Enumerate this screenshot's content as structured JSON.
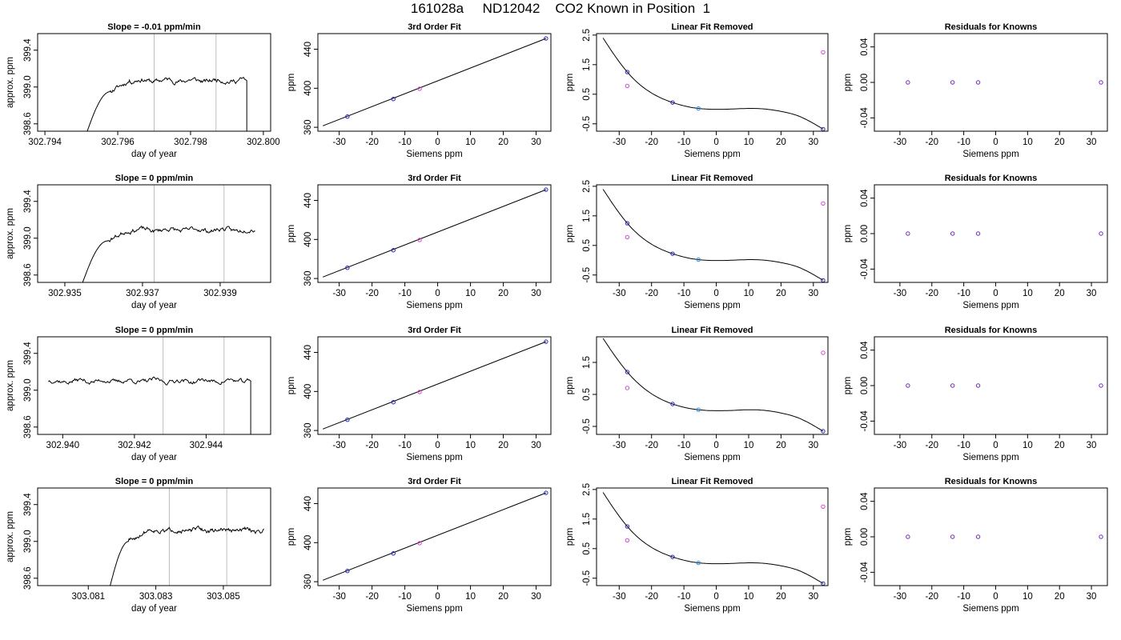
{
  "figure": {
    "title": "161028a     ND12042    CO2 Known in Position  1"
  },
  "colors": {
    "axis": "#000000",
    "trace": "#000000",
    "vertical_marker": "#bdbdbd",
    "point_dark": "#2222cc",
    "point_blue": "#1e90ff",
    "point_magenta": "#dd44dd",
    "point_purple": "#7722cc",
    "trace_red": "#dd2222"
  },
  "chart_data": [
    {
      "type": "line",
      "row": 1,
      "col": 1,
      "title": "Slope =  -0.01  ppm/min",
      "xlabel": "day of year",
      "ylabel": "approx. ppm",
      "xlim": [
        302.7938,
        302.8002
      ],
      "ylim": [
        398.52,
        399.58
      ],
      "xticks": [
        302.794,
        302.796,
        302.798,
        302.8
      ],
      "xticklabels": [
        "302.794",
        "302.796",
        "302.798",
        "302.800"
      ],
      "yticks": [
        398.6,
        399.0,
        399.4
      ],
      "yticklabels": [
        "398.6",
        "399.0",
        "399.4"
      ],
      "vlines": [
        302.797,
        302.7987
      ],
      "trace": {
        "start": 302.7951,
        "rise_end": 302.7958,
        "end": 302.7995,
        "base": 398.45,
        "level": 399.07,
        "drop": true,
        "seed": 11
      }
    },
    {
      "type": "scatter",
      "row": 1,
      "col": 2,
      "title": "3rd Order Fit",
      "xlabel": "Siemens ppm",
      "ylabel": "ppm",
      "xlim": [
        -36.5,
        34.5
      ],
      "ylim": [
        356,
        456
      ],
      "xticks": [
        -30,
        -20,
        -10,
        0,
        10,
        20,
        30
      ],
      "xticklabels": [
        "-30",
        "-20",
        "-10",
        "0",
        "10",
        "20",
        "30"
      ],
      "yticks": [
        360,
        400,
        440
      ],
      "yticklabels": [
        "360",
        "400",
        "440"
      ],
      "line": [
        [
          -35,
          361.5
        ],
        [
          33,
          451
        ]
      ],
      "points": [
        {
          "x": -27.5,
          "y": 371,
          "color": "point_dark"
        },
        {
          "x": -13.5,
          "y": 389,
          "color": "point_dark"
        },
        {
          "x": -5.5,
          "y": 399.5,
          "color": "point_magenta"
        },
        {
          "x": 33,
          "y": 451,
          "color": "point_dark"
        }
      ]
    },
    {
      "type": "scatter",
      "row": 1,
      "col": 3,
      "title": "Linear Fit Removed",
      "xlabel": "Siemens ppm",
      "ylabel": "ppm",
      "xlim": [
        -37,
        34.5
      ],
      "ylim": [
        -0.75,
        2.55
      ],
      "xticks": [
        -30,
        -20,
        -10,
        0,
        10,
        20,
        30
      ],
      "xticklabels": [
        "-30",
        "-20",
        "-10",
        "0",
        "10",
        "20",
        "30"
      ],
      "yticks": [
        -0.5,
        0.5,
        1.5,
        2.5
      ],
      "yticklabels": [
        "-0.5",
        "0.5",
        "1.5",
        "2.5"
      ],
      "curve": {
        "x": [
          -35,
          -27.5,
          -13.5,
          -5.5,
          0,
          5,
          10,
          15,
          20,
          25,
          33
        ],
        "y": [
          2.4,
          1.25,
          0.22,
          0.02,
          -0.01,
          0.0,
          0.02,
          0.0,
          -0.08,
          -0.22,
          -0.68
        ]
      },
      "points": [
        {
          "x": -27.5,
          "y": 1.25,
          "color": "point_dark"
        },
        {
          "x": -27.5,
          "y": 0.78,
          "color": "point_magenta"
        },
        {
          "x": -13.5,
          "y": 0.22,
          "color": "point_dark"
        },
        {
          "x": -5.5,
          "y": 0.02,
          "color": "point_blue"
        },
        {
          "x": 33,
          "y": 1.92,
          "color": "point_magenta"
        },
        {
          "x": 33,
          "y": -0.68,
          "color": "point_dark"
        }
      ]
    },
    {
      "type": "scatter",
      "row": 1,
      "col": 4,
      "title": "Residuals for Knowns",
      "xlabel": "Siemens ppm",
      "ylabel": "ppm",
      "xlim": [
        -38,
        35
      ],
      "ylim": [
        -0.055,
        0.055
      ],
      "xticks": [
        -30,
        -20,
        -10,
        0,
        10,
        20,
        30
      ],
      "xticklabels": [
        "-30",
        "-20",
        "-10",
        "0",
        "10",
        "20",
        "30"
      ],
      "yticks": [
        -0.04,
        0.0,
        0.04
      ],
      "yticklabels": [
        "-0.04",
        "0.00",
        "0.04"
      ],
      "points": [
        {
          "x": -27.5,
          "y": 0,
          "color": "point_purple"
        },
        {
          "x": -13.5,
          "y": 0,
          "color": "point_purple"
        },
        {
          "x": -5.5,
          "y": 0,
          "color": "point_purple"
        },
        {
          "x": 33,
          "y": 0,
          "color": "point_purple"
        }
      ]
    },
    {
      "type": "line",
      "row": 2,
      "col": 1,
      "title": "Slope =  0  ppm/min",
      "xlabel": "day of year",
      "ylabel": "approx. ppm",
      "xlim": [
        302.9343,
        302.9403
      ],
      "ylim": [
        398.52,
        399.58
      ],
      "xticks": [
        302.935,
        302.937,
        302.939
      ],
      "xticklabels": [
        "302.935",
        "302.937",
        "302.939"
      ],
      "yticks": [
        398.6,
        399.0,
        399.4
      ],
      "yticklabels": [
        "398.6",
        "399.0",
        "399.4"
      ],
      "vlines": [
        302.9373,
        302.9391
      ],
      "trace": {
        "start": 302.9354,
        "rise_end": 302.9361,
        "end": 302.9399,
        "base": 398.45,
        "level": 399.09,
        "drop": false,
        "seed": 23
      }
    },
    {
      "type": "scatter",
      "row": 2,
      "col": 2,
      "title": "3rd Order Fit",
      "xlabel": "Siemens ppm",
      "ylabel": "ppm",
      "xlim": [
        -36.5,
        34.5
      ],
      "ylim": [
        356,
        456
      ],
      "xticks": [
        -30,
        -20,
        -10,
        0,
        10,
        20,
        30
      ],
      "xticklabels": [
        "-30",
        "-20",
        "-10",
        "0",
        "10",
        "20",
        "30"
      ],
      "yticks": [
        360,
        400,
        440
      ],
      "yticklabels": [
        "360",
        "400",
        "440"
      ],
      "line": [
        [
          -35,
          361.5
        ],
        [
          33,
          451
        ]
      ],
      "points": [
        {
          "x": -27.5,
          "y": 371,
          "color": "point_dark"
        },
        {
          "x": -13.5,
          "y": 389,
          "color": "point_dark"
        },
        {
          "x": -5.5,
          "y": 399.5,
          "color": "point_magenta"
        },
        {
          "x": 33,
          "y": 451,
          "color": "point_dark"
        }
      ]
    },
    {
      "type": "scatter",
      "row": 2,
      "col": 3,
      "title": "Linear Fit Removed",
      "xlabel": "Siemens ppm",
      "ylabel": "ppm",
      "xlim": [
        -37,
        34.5
      ],
      "ylim": [
        -0.75,
        2.55
      ],
      "xticks": [
        -30,
        -20,
        -10,
        0,
        10,
        20,
        30
      ],
      "xticklabels": [
        "-30",
        "-20",
        "-10",
        "0",
        "10",
        "20",
        "30"
      ],
      "yticks": [
        -0.5,
        0.5,
        1.5,
        2.5
      ],
      "yticklabels": [
        "-0.5",
        "0.5",
        "1.5",
        "2.5"
      ],
      "curve": {
        "x": [
          -35,
          -27.5,
          -13.5,
          -5.5,
          0,
          5,
          10,
          15,
          20,
          25,
          33
        ],
        "y": [
          2.4,
          1.25,
          0.22,
          0.02,
          -0.01,
          0.0,
          0.02,
          0.0,
          -0.08,
          -0.22,
          -0.68
        ]
      },
      "points": [
        {
          "x": -27.5,
          "y": 1.25,
          "color": "point_dark"
        },
        {
          "x": -27.5,
          "y": 0.78,
          "color": "point_magenta"
        },
        {
          "x": -13.5,
          "y": 0.22,
          "color": "point_dark"
        },
        {
          "x": -5.5,
          "y": 0.02,
          "color": "point_blue"
        },
        {
          "x": 33,
          "y": 1.92,
          "color": "point_magenta"
        },
        {
          "x": 33,
          "y": -0.68,
          "color": "point_dark"
        }
      ]
    },
    {
      "type": "scatter",
      "row": 2,
      "col": 4,
      "title": "Residuals for Knowns",
      "xlabel": "Siemens ppm",
      "ylabel": "ppm",
      "xlim": [
        -38,
        35
      ],
      "ylim": [
        -0.055,
        0.055
      ],
      "xticks": [
        -30,
        -20,
        -10,
        0,
        10,
        20,
        30
      ],
      "xticklabels": [
        "-30",
        "-20",
        "-10",
        "0",
        "10",
        "20",
        "30"
      ],
      "yticks": [
        -0.04,
        0.0,
        0.04
      ],
      "yticklabels": [
        "-0.04",
        "0.00",
        "0.04"
      ],
      "points": [
        {
          "x": -27.5,
          "y": 0,
          "color": "point_purple"
        },
        {
          "x": -13.5,
          "y": 0,
          "color": "point_purple"
        },
        {
          "x": -5.5,
          "y": 0,
          "color": "point_purple"
        },
        {
          "x": 33,
          "y": 0,
          "color": "point_purple"
        }
      ]
    },
    {
      "type": "line",
      "row": 3,
      "col": 1,
      "title": "Slope =  0  ppm/min",
      "xlabel": "day of year",
      "ylabel": "approx. ppm",
      "xlim": [
        302.9393,
        302.9458
      ],
      "ylim": [
        398.52,
        399.58
      ],
      "xticks": [
        302.94,
        302.942,
        302.944
      ],
      "xticklabels": [
        "302.940",
        "302.942",
        "302.944"
      ],
      "yticks": [
        398.6,
        399.0,
        399.4
      ],
      "yticklabels": [
        "398.6",
        "399.0",
        "399.4"
      ],
      "vlines": [
        302.9428,
        302.9445
      ],
      "trace": {
        "start": 302.9396,
        "rise_end": 302.9396,
        "end": 302.9452,
        "base": 398.45,
        "level": 399.1,
        "drop": true,
        "seed": 37
      }
    },
    {
      "type": "scatter",
      "row": 3,
      "col": 2,
      "title": "3rd Order Fit",
      "xlabel": "Siemens ppm",
      "ylabel": "ppm",
      "xlim": [
        -36.5,
        34.5
      ],
      "ylim": [
        356,
        456
      ],
      "xticks": [
        -30,
        -20,
        -10,
        0,
        10,
        20,
        30
      ],
      "xticklabels": [
        "-30",
        "-20",
        "-10",
        "0",
        "10",
        "20",
        "30"
      ],
      "yticks": [
        360,
        400,
        440
      ],
      "yticklabels": [
        "360",
        "400",
        "440"
      ],
      "line": [
        [
          -35,
          361.5
        ],
        [
          33,
          451
        ]
      ],
      "points": [
        {
          "x": -27.5,
          "y": 371,
          "color": "point_dark"
        },
        {
          "x": -13.5,
          "y": 389,
          "color": "point_dark"
        },
        {
          "x": -5.5,
          "y": 399.5,
          "color": "point_magenta"
        },
        {
          "x": 33,
          "y": 451,
          "color": "point_dark"
        }
      ]
    },
    {
      "type": "scatter",
      "row": 3,
      "col": 3,
      "title": "Linear Fit Removed",
      "xlabel": "Siemens ppm",
      "ylabel": "ppm",
      "xlim": [
        -37,
        34.5
      ],
      "ylim": [
        -0.75,
        2.3
      ],
      "xticks": [
        -30,
        -20,
        -10,
        0,
        10,
        20,
        30
      ],
      "xticklabels": [
        "-30",
        "-20",
        "-10",
        "0",
        "10",
        "20",
        "30"
      ],
      "yticks": [
        -0.5,
        0.5,
        1.5
      ],
      "yticklabels": [
        "-0.5",
        "0.5",
        "1.5"
      ],
      "curve": {
        "x": [
          -35,
          -27.5,
          -13.5,
          -5.5,
          0,
          5,
          10,
          15,
          20,
          25,
          33
        ],
        "y": [
          2.25,
          1.2,
          0.2,
          0.02,
          -0.01,
          0.0,
          0.02,
          0.0,
          -0.08,
          -0.22,
          -0.65
        ]
      },
      "points": [
        {
          "x": -27.5,
          "y": 1.2,
          "color": "point_dark"
        },
        {
          "x": -27.5,
          "y": 0.7,
          "color": "point_magenta"
        },
        {
          "x": -13.5,
          "y": 0.2,
          "color": "point_dark"
        },
        {
          "x": -5.5,
          "y": 0.02,
          "color": "point_blue"
        },
        {
          "x": 33,
          "y": 1.8,
          "color": "point_magenta"
        },
        {
          "x": 33,
          "y": -0.65,
          "color": "point_dark"
        }
      ]
    },
    {
      "type": "scatter",
      "row": 3,
      "col": 4,
      "title": "Residuals for Knowns",
      "xlabel": "Siemens ppm",
      "ylabel": "ppm",
      "xlim": [
        -38,
        35
      ],
      "ylim": [
        -0.055,
        0.055
      ],
      "xticks": [
        -30,
        -20,
        -10,
        0,
        10,
        20,
        30
      ],
      "xticklabels": [
        "-30",
        "-20",
        "-10",
        "0",
        "10",
        "20",
        "30"
      ],
      "yticks": [
        -0.04,
        0.0,
        0.04
      ],
      "yticklabels": [
        "-0.04",
        "0.00",
        "0.04"
      ],
      "points": [
        {
          "x": -27.5,
          "y": 0,
          "color": "point_purple"
        },
        {
          "x": -13.5,
          "y": 0,
          "color": "point_purple"
        },
        {
          "x": -5.5,
          "y": 0,
          "color": "point_purple"
        },
        {
          "x": 33,
          "y": 0,
          "color": "point_purple"
        }
      ]
    },
    {
      "type": "line",
      "row": 4,
      "col": 1,
      "title": "Slope =  0  ppm/min",
      "xlabel": "day of year",
      "ylabel": "approx. ppm",
      "xlim": [
        303.0795,
        303.0864
      ],
      "ylim": [
        398.52,
        399.58
      ],
      "xticks": [
        303.081,
        303.083,
        303.085
      ],
      "xticklabels": [
        "303.081",
        "303.083",
        "303.085"
      ],
      "yticks": [
        398.6,
        399.0,
        399.4
      ],
      "yticklabels": [
        "398.6",
        "399.0",
        "399.4"
      ],
      "vlines": [
        303.0834,
        303.0851
      ],
      "trace": {
        "start": 303.0816,
        "rise_end": 303.0822,
        "end": 303.0862,
        "base": 398.45,
        "level": 399.12,
        "drop": false,
        "seed": 51
      }
    },
    {
      "type": "scatter",
      "row": 4,
      "col": 2,
      "title": "3rd Order Fit",
      "xlabel": "Siemens ppm",
      "ylabel": "ppm",
      "xlim": [
        -36.5,
        34.5
      ],
      "ylim": [
        356,
        456
      ],
      "xticks": [
        -30,
        -20,
        -10,
        0,
        10,
        20,
        30
      ],
      "xticklabels": [
        "-30",
        "-20",
        "-10",
        "0",
        "10",
        "20",
        "30"
      ],
      "yticks": [
        360,
        400,
        440
      ],
      "yticklabels": [
        "360",
        "400",
        "440"
      ],
      "line": [
        [
          -35,
          361.5
        ],
        [
          33,
          451
        ]
      ],
      "points": [
        {
          "x": -27.5,
          "y": 371,
          "color": "point_dark"
        },
        {
          "x": -13.5,
          "y": 389,
          "color": "point_dark"
        },
        {
          "x": -5.5,
          "y": 399.5,
          "color": "point_magenta"
        },
        {
          "x": 33,
          "y": 451,
          "color": "point_dark"
        }
      ]
    },
    {
      "type": "scatter",
      "row": 4,
      "col": 3,
      "title": "Linear Fit Removed",
      "xlabel": "Siemens ppm",
      "ylabel": "ppm",
      "xlim": [
        -37,
        34.5
      ],
      "ylim": [
        -0.75,
        2.55
      ],
      "xticks": [
        -30,
        -20,
        -10,
        0,
        10,
        20,
        30
      ],
      "xticklabels": [
        "-30",
        "-20",
        "-10",
        "0",
        "10",
        "20",
        "30"
      ],
      "yticks": [
        -0.5,
        0.5,
        1.5,
        2.5
      ],
      "yticklabels": [
        "-0.5",
        "0.5",
        "1.5",
        "2.5"
      ],
      "curve": {
        "x": [
          -35,
          -27.5,
          -13.5,
          -5.5,
          0,
          5,
          10,
          15,
          20,
          25,
          33
        ],
        "y": [
          2.4,
          1.25,
          0.22,
          0.02,
          -0.01,
          0.0,
          0.02,
          0.0,
          -0.08,
          -0.22,
          -0.68
        ]
      },
      "points": [
        {
          "x": -27.5,
          "y": 1.25,
          "color": "point_dark"
        },
        {
          "x": -27.5,
          "y": 0.78,
          "color": "point_magenta"
        },
        {
          "x": -13.5,
          "y": 0.22,
          "color": "point_dark"
        },
        {
          "x": -5.5,
          "y": 0.02,
          "color": "point_blue"
        },
        {
          "x": 33,
          "y": 1.92,
          "color": "point_magenta"
        },
        {
          "x": 33,
          "y": -0.68,
          "color": "point_dark"
        }
      ]
    },
    {
      "type": "scatter",
      "row": 4,
      "col": 4,
      "title": "Residuals for Knowns",
      "xlabel": "Siemens ppm",
      "ylabel": "ppm",
      "xlim": [
        -38,
        35
      ],
      "ylim": [
        -0.055,
        0.055
      ],
      "xticks": [
        -30,
        -20,
        -10,
        0,
        10,
        20,
        30
      ],
      "xticklabels": [
        "-30",
        "-20",
        "-10",
        "0",
        "10",
        "20",
        "30"
      ],
      "yticks": [
        -0.04,
        0.0,
        0.04
      ],
      "yticklabels": [
        "-0.04",
        "0.00",
        "0.04"
      ],
      "points": [
        {
          "x": -27.5,
          "y": 0,
          "color": "point_purple"
        },
        {
          "x": -13.5,
          "y": 0,
          "color": "point_purple"
        },
        {
          "x": -5.5,
          "y": 0,
          "color": "point_purple"
        },
        {
          "x": 33,
          "y": 0,
          "color": "point_purple"
        }
      ]
    }
  ]
}
